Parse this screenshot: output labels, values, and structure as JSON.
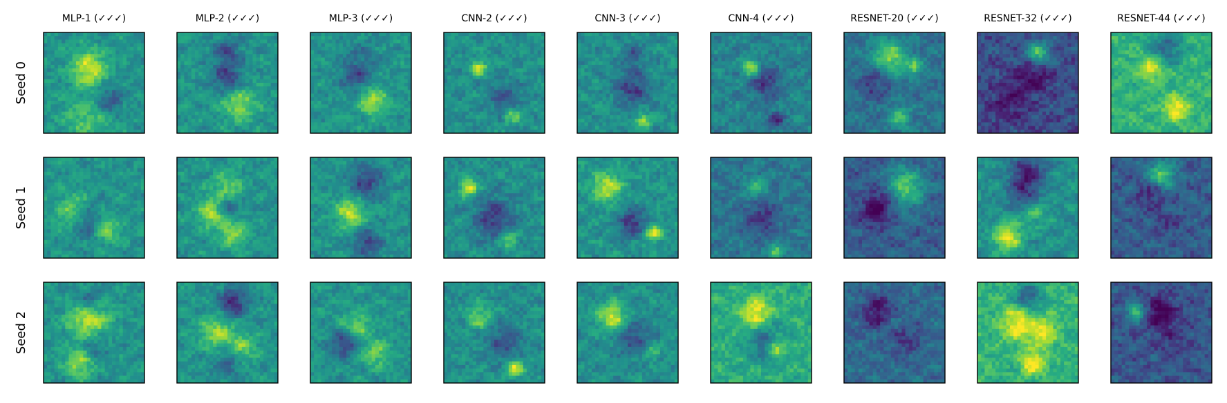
{
  "chart_data": {
    "type": "heatmap",
    "title": "",
    "columns": [
      "MLP-1 (✓✓✓)",
      "MLP-2 (✓✓✓)",
      "MLP-3 (✓✓✓)",
      "CNN-2 (✓✓✓)",
      "CNN-3 (✓✓✓)",
      "CNN-4 (✓✓✓)",
      "RESNET-20 (✓✓✓)",
      "RESNET-32 (✓✓✓)",
      "RESNET-44 (✓✓✓)"
    ],
    "rows": [
      "Seed 0",
      "Seed 1",
      "Seed 2"
    ],
    "colormap": "viridis",
    "grid": false,
    "ticks": false,
    "panels": [
      [
        {
          "bg": 0.52,
          "blobs": [
            [
              0.45,
              0.35,
              0.12,
              0.85
            ],
            [
              0.65,
              0.68,
              0.1,
              -0.6
            ],
            [
              0.45,
              0.85,
              0.18,
              0.4
            ]
          ]
        },
        {
          "bg": 0.52,
          "blobs": [
            [
              0.5,
              0.2,
              0.1,
              -0.5
            ],
            [
              0.5,
              0.45,
              0.1,
              -0.6
            ],
            [
              0.62,
              0.72,
              0.12,
              0.6
            ]
          ]
        },
        {
          "bg": 0.52,
          "blobs": [
            [
              0.45,
              0.45,
              0.1,
              -0.5
            ],
            [
              0.62,
              0.68,
              0.1,
              0.7
            ],
            [
              0.5,
              0.25,
              0.15,
              -0.2
            ]
          ]
        },
        {
          "bg": 0.5,
          "blobs": [
            [
              0.35,
              0.35,
              0.05,
              0.9
            ],
            [
              0.6,
              0.65,
              0.1,
              -0.5
            ],
            [
              0.68,
              0.82,
              0.06,
              0.6
            ]
          ]
        },
        {
          "bg": 0.5,
          "blobs": [
            [
              0.55,
              0.22,
              0.08,
              -0.4
            ],
            [
              0.55,
              0.55,
              0.12,
              -0.6
            ],
            [
              0.65,
              0.88,
              0.05,
              0.8
            ]
          ]
        },
        {
          "bg": 0.45,
          "blobs": [
            [
              0.4,
              0.35,
              0.06,
              0.9
            ],
            [
              0.55,
              0.5,
              0.12,
              -0.5
            ],
            [
              0.65,
              0.88,
              0.06,
              -0.6
            ]
          ]
        },
        {
          "bg": 0.38,
          "blobs": [
            [
              0.45,
              0.25,
              0.12,
              0.9
            ],
            [
              0.7,
              0.35,
              0.06,
              0.7
            ],
            [
              0.3,
              0.5,
              0.12,
              -0.4
            ],
            [
              0.55,
              0.85,
              0.08,
              0.6
            ]
          ]
        },
        {
          "bg": 0.25,
          "blobs": [
            [
              0.6,
              0.2,
              0.08,
              0.9
            ],
            [
              0.55,
              0.45,
              0.12,
              -0.4
            ],
            [
              0.3,
              0.7,
              0.15,
              -0.3
            ]
          ]
        },
        {
          "bg": 0.65,
          "blobs": [
            [
              0.55,
              0.15,
              0.12,
              -0.6
            ],
            [
              0.4,
              0.35,
              0.08,
              0.7
            ],
            [
              0.65,
              0.75,
              0.08,
              0.8
            ]
          ]
        }
      ],
      [
        {
          "bg": 0.52,
          "blobs": [
            [
              0.3,
              0.55,
              0.12,
              0.6
            ],
            [
              0.45,
              0.65,
              0.12,
              -0.7
            ],
            [
              0.6,
              0.7,
              0.1,
              0.7
            ]
          ]
        },
        {
          "bg": 0.52,
          "blobs": [
            [
              0.5,
              0.3,
              0.1,
              0.5
            ],
            [
              0.35,
              0.55,
              0.1,
              0.7
            ],
            [
              0.55,
              0.75,
              0.1,
              0.6
            ],
            [
              0.5,
              0.5,
              0.08,
              -0.5
            ]
          ]
        },
        {
          "bg": 0.52,
          "blobs": [
            [
              0.55,
              0.25,
              0.12,
              -0.6
            ],
            [
              0.4,
              0.55,
              0.1,
              0.8
            ],
            [
              0.55,
              0.85,
              0.1,
              -0.6
            ]
          ]
        },
        {
          "bg": 0.5,
          "blobs": [
            [
              0.25,
              0.3,
              0.06,
              0.9
            ],
            [
              0.5,
              0.6,
              0.14,
              -0.6
            ],
            [
              0.65,
              0.82,
              0.06,
              0.6
            ]
          ]
        },
        {
          "bg": 0.52,
          "blobs": [
            [
              0.3,
              0.3,
              0.1,
              0.8
            ],
            [
              0.55,
              0.65,
              0.1,
              -0.7
            ],
            [
              0.75,
              0.75,
              0.06,
              0.8
            ]
          ]
        },
        {
          "bg": 0.4,
          "blobs": [
            [
              0.45,
              0.3,
              0.08,
              0.5
            ],
            [
              0.5,
              0.6,
              0.12,
              -0.5
            ],
            [
              0.65,
              0.95,
              0.05,
              0.9
            ]
          ]
        },
        {
          "bg": 0.3,
          "blobs": [
            [
              0.6,
              0.3,
              0.14,
              0.9
            ],
            [
              0.4,
              0.4,
              0.1,
              -0.4
            ],
            [
              0.3,
              0.55,
              0.1,
              -0.5
            ]
          ]
        },
        {
          "bg": 0.5,
          "blobs": [
            [
              0.5,
              0.15,
              0.12,
              -0.8
            ],
            [
              0.45,
              0.38,
              0.1,
              -0.6
            ],
            [
              0.3,
              0.8,
              0.1,
              0.9
            ],
            [
              0.55,
              0.55,
              0.1,
              0.4
            ]
          ]
        },
        {
          "bg": 0.3,
          "blobs": [
            [
              0.5,
              0.18,
              0.1,
              0.9
            ],
            [
              0.4,
              0.35,
              0.1,
              -0.4
            ],
            [
              0.55,
              0.65,
              0.1,
              -0.2
            ]
          ]
        }
      ],
      [
        {
          "bg": 0.52,
          "blobs": [
            [
              0.45,
              0.35,
              0.14,
              0.9
            ],
            [
              0.45,
              0.2,
              0.1,
              -0.6
            ],
            [
              0.35,
              0.8,
              0.1,
              0.7
            ],
            [
              0.5,
              0.65,
              0.1,
              -0.3
            ]
          ]
        },
        {
          "bg": 0.52,
          "blobs": [
            [
              0.55,
              0.2,
              0.1,
              -0.8
            ],
            [
              0.4,
              0.5,
              0.12,
              0.6
            ],
            [
              0.65,
              0.65,
              0.1,
              0.5
            ],
            [
              0.5,
              0.8,
              0.1,
              -0.4
            ]
          ]
        },
        {
          "bg": 0.52,
          "blobs": [
            [
              0.45,
              0.45,
              0.1,
              0.6
            ],
            [
              0.35,
              0.6,
              0.1,
              -0.7
            ],
            [
              0.65,
              0.7,
              0.1,
              0.5
            ]
          ]
        },
        {
          "bg": 0.5,
          "blobs": [
            [
              0.35,
              0.35,
              0.08,
              0.6
            ],
            [
              0.6,
              0.6,
              0.12,
              -0.5
            ],
            [
              0.7,
              0.85,
              0.06,
              0.9
            ]
          ]
        },
        {
          "bg": 0.5,
          "blobs": [
            [
              0.35,
              0.35,
              0.1,
              0.9
            ],
            [
              0.55,
              0.55,
              0.12,
              -0.5
            ],
            [
              0.75,
              0.7,
              0.05,
              0.5
            ]
          ]
        },
        {
          "bg": 0.62,
          "blobs": [
            [
              0.45,
              0.3,
              0.1,
              0.8
            ],
            [
              0.55,
              0.6,
              0.12,
              -0.6
            ],
            [
              0.65,
              0.65,
              0.06,
              0.9
            ]
          ]
        },
        {
          "bg": 0.35,
          "blobs": [
            [
              0.35,
              0.3,
              0.12,
              -0.6
            ],
            [
              0.6,
              0.55,
              0.12,
              -0.4
            ],
            [
              0.5,
              0.4,
              0.1,
              0.3
            ]
          ]
        },
        {
          "bg": 0.65,
          "blobs": [
            [
              0.5,
              0.15,
              0.1,
              -0.7
            ],
            [
              0.4,
              0.4,
              0.12,
              0.7
            ],
            [
              0.65,
              0.5,
              0.1,
              0.6
            ],
            [
              0.55,
              0.8,
              0.08,
              0.8
            ]
          ]
        },
        {
          "bg": 0.28,
          "blobs": [
            [
              0.25,
              0.3,
              0.06,
              0.9
            ],
            [
              0.5,
              0.3,
              0.1,
              -0.6
            ],
            [
              0.6,
              0.55,
              0.14,
              -0.2
            ]
          ]
        }
      ]
    ]
  }
}
